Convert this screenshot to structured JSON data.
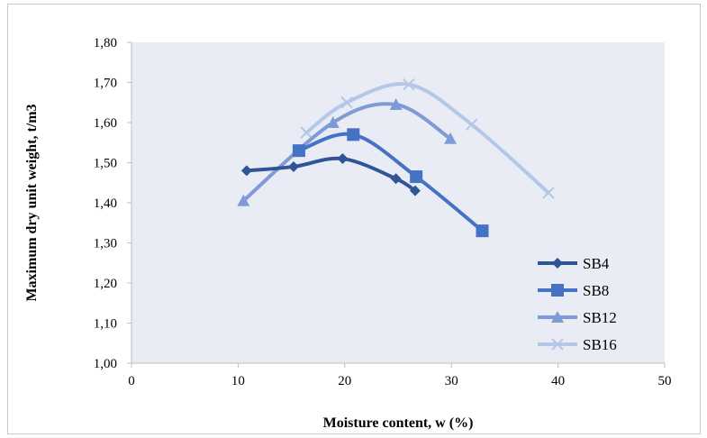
{
  "chart_data": {
    "type": "line",
    "xlabel": "Moisture content, w (%)",
    "ylabel": "Maximum dry unit weight, t/m3",
    "xlim": [
      0,
      50
    ],
    "ylim": [
      1.0,
      1.8
    ],
    "x_ticks": [
      "0",
      "10",
      "20",
      "30",
      "40",
      "50"
    ],
    "y_ticks": [
      "1,00",
      "1,10",
      "1,20",
      "1,30",
      "1,40",
      "1,50",
      "1,60",
      "1,70",
      "1,80"
    ],
    "grid": false,
    "legend_position": "bottom-right",
    "series": [
      {
        "name": "SB4",
        "marker": "diamond",
        "color": "#2f5597",
        "points": [
          [
            10.8,
            1.48
          ],
          [
            15.2,
            1.49
          ],
          [
            19.8,
            1.51
          ],
          [
            24.8,
            1.46
          ],
          [
            26.6,
            1.43
          ]
        ]
      },
      {
        "name": "SB8",
        "marker": "square",
        "color": "#4472c4",
        "points": [
          [
            15.7,
            1.53
          ],
          [
            20.8,
            1.57
          ],
          [
            26.7,
            1.465
          ],
          [
            32.9,
            1.33
          ]
        ]
      },
      {
        "name": "SB12",
        "marker": "triangle",
        "color": "#7f9bd6",
        "points": [
          [
            10.5,
            1.405
          ],
          [
            18.9,
            1.6
          ],
          [
            24.8,
            1.645
          ],
          [
            29.9,
            1.56
          ]
        ]
      },
      {
        "name": "SB16",
        "marker": "x",
        "color": "#b4c7e7",
        "points": [
          [
            16.4,
            1.575
          ],
          [
            20.2,
            1.65
          ],
          [
            26.0,
            1.695
          ],
          [
            31.9,
            1.595
          ],
          [
            39.1,
            1.425
          ]
        ]
      }
    ]
  }
}
